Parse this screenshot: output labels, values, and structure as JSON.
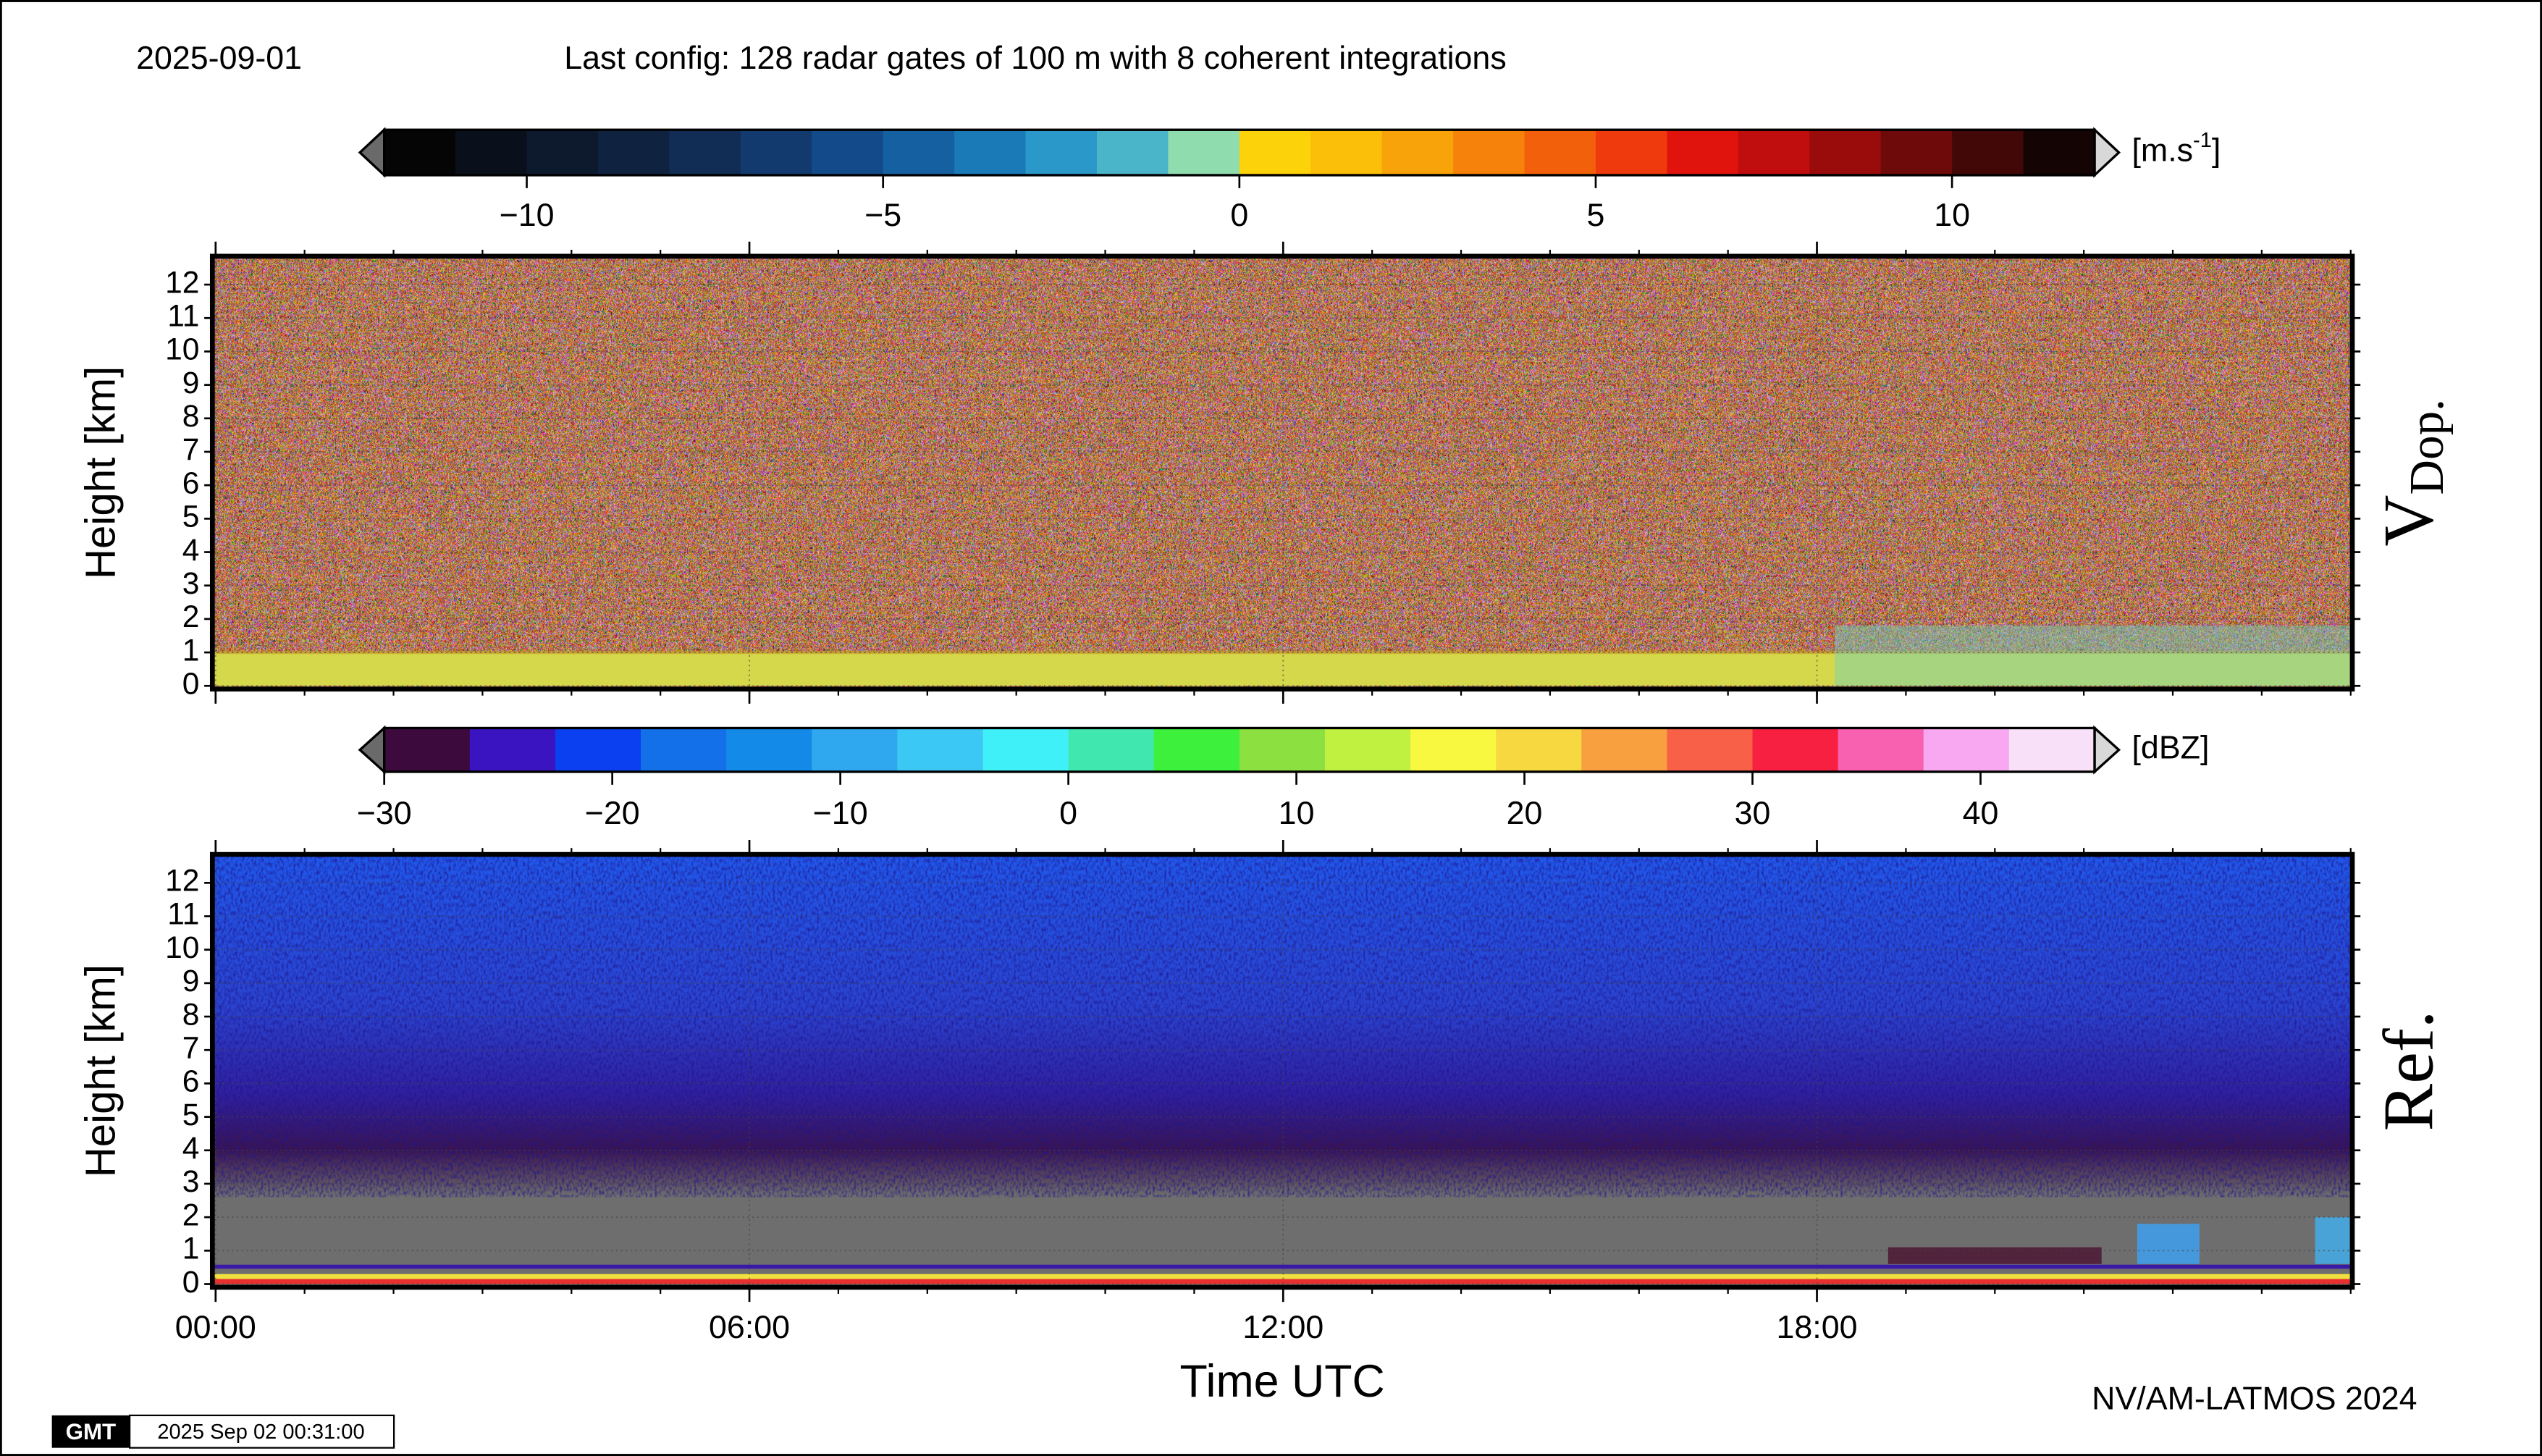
{
  "header": {
    "date": "2025-09-01",
    "title": "Last config: 128 radar gates of 100 m with 8 coherent integrations"
  },
  "footer": {
    "credit": "NV/AM-LATMOS 2024",
    "logo": "GMT",
    "timestamp": "2025 Sep 02 00:31:00"
  },
  "chart_data": [
    {
      "type": "heatmap",
      "label": "V",
      "label_subscript": "Dop.",
      "ylabel": "Height [km]",
      "ylim": [
        0,
        12.8
      ],
      "yticks": [
        0,
        1,
        2,
        3,
        4,
        5,
        6,
        7,
        8,
        9,
        10,
        11,
        12
      ],
      "xlim": [
        0,
        24
      ],
      "grid": true,
      "colorbar": {
        "lim": [
          -12,
          12
        ],
        "ticks": [
          {
            "value": -10,
            "label": "−10"
          },
          {
            "value": -5,
            "label": "−5"
          },
          0,
          5,
          10
        ],
        "unit": "[m.s",
        "unit_superscript": "-1",
        "unit_suffix": "]",
        "colors": [
          "#050505",
          "#0a0f1c",
          "#0d1a2e",
          "#0f2240",
          "#112c55",
          "#123a6e",
          "#134b8a",
          "#1560a0",
          "#1a7ab8",
          "#2a98c8",
          "#4ab4c8",
          "#8fdcae",
          "#fcd20a",
          "#fbbf0a",
          "#f9a30a",
          "#f6820b",
          "#f2600c",
          "#ee3a0d",
          "#e0140d",
          "#c00d0d",
          "#9a0b0b",
          "#6e0a0a",
          "#420808",
          "#150404"
        ]
      }
    },
    {
      "type": "heatmap",
      "label": "Ref.",
      "ylabel": "Height [km]",
      "xlabel": "Time UTC",
      "ylim": [
        0,
        12.8
      ],
      "yticks": [
        0,
        1,
        2,
        3,
        4,
        5,
        6,
        7,
        8,
        9,
        10,
        11,
        12
      ],
      "xlim": [
        0,
        24
      ],
      "xticks": [
        {
          "value": 0,
          "label": "00:00"
        },
        {
          "value": 6,
          "label": "06:00"
        },
        {
          "value": 12,
          "label": "12:00"
        },
        {
          "value": 18,
          "label": "18:00"
        }
      ],
      "grid": true,
      "colorbar": {
        "lim": [
          -30,
          45
        ],
        "ticks": [
          {
            "value": -30,
            "label": "−30"
          },
          {
            "value": -20,
            "label": "−20"
          },
          {
            "value": -10,
            "label": "−10"
          },
          0,
          10,
          20,
          30,
          40
        ],
        "unit": "[dBZ]",
        "colors": [
          "#3c0a3c",
          "#3a14c0",
          "#0a40f0",
          "#1470e8",
          "#148ae8",
          "#30a8f0",
          "#3cc8f4",
          "#40f0f8",
          "#40e8b0",
          "#3cf03c",
          "#8ce040",
          "#c0f040",
          "#f8f840",
          "#f8d840",
          "#f8a040",
          "#f86048",
          "#f82040",
          "#f860b0",
          "#f8a8f0",
          "#f8e0f8"
        ]
      }
    }
  ]
}
